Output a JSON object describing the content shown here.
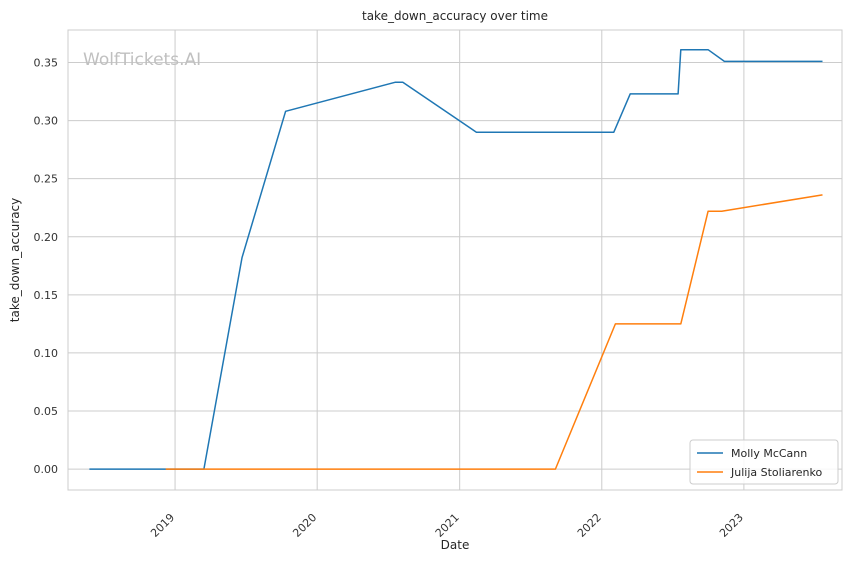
{
  "chart_data": {
    "type": "line",
    "title": "take_down_accuracy over time",
    "xlabel": "Date",
    "ylabel": "take_down_accuracy",
    "watermark": "WolfTickets.AI",
    "grid": true,
    "legend_position": "bottom-right",
    "xlim": [
      "2018-04-01",
      "2023-09-10"
    ],
    "ylim": [
      -0.018,
      0.378
    ],
    "x_ticks": [
      "2019-01-01",
      "2020-01-01",
      "2021-01-01",
      "2022-01-01",
      "2023-01-01"
    ],
    "x_tick_labels": [
      "2019",
      "2020",
      "2021",
      "2022",
      "2023"
    ],
    "y_ticks": [
      0.0,
      0.05,
      0.1,
      0.15,
      0.2,
      0.25,
      0.3,
      0.35
    ],
    "y_tick_labels": [
      "0.00",
      "0.05",
      "0.10",
      "0.15",
      "0.20",
      "0.25",
      "0.30",
      "0.35"
    ],
    "series": [
      {
        "name": "Molly McCann",
        "color": "#1f77b4",
        "x": [
          "2018-05-26",
          "2018-12-08",
          "2019-03-16",
          "2019-06-22",
          "2019-10-12",
          "2020-07-19",
          "2020-08-08",
          "2021-02-13",
          "2022-02-01",
          "2022-03-15",
          "2022-07-16",
          "2022-07-23",
          "2022-10-01",
          "2022-11-12",
          "2023-07-22"
        ],
        "y": [
          0.0,
          0.0,
          0.0,
          0.182,
          0.308,
          0.333,
          0.333,
          0.29,
          0.29,
          0.323,
          0.323,
          0.361,
          0.361,
          0.351,
          0.351
        ]
      },
      {
        "name": "Julija Stoliarenko",
        "color": "#ff7f0e",
        "x": [
          "2018-12-08",
          "2021-09-04",
          "2022-02-05",
          "2022-07-23",
          "2022-10-01",
          "2022-11-05",
          "2023-07-22"
        ],
        "y": [
          0.0,
          0.0,
          0.125,
          0.125,
          0.222,
          0.222,
          0.236
        ]
      }
    ]
  }
}
